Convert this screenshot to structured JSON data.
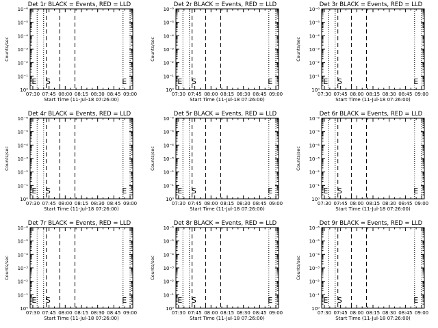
{
  "chart_data": [
    {
      "type": "line",
      "title": "Det 1r BLACK = Events, RED = LLD",
      "xlabel": "Start Time (11-Jul-18 07:26:00)",
      "ylabel": "Counts/sec",
      "x_tick_labels": [
        "07:30",
        "07:45",
        "08:00",
        "08:15",
        "08:30",
        "08:45",
        "09:00"
      ],
      "y_tick_labels": [
        "10⁰",
        "10⁻¹",
        "10⁻²",
        "10⁻³",
        "10⁻⁴",
        "10⁻⁵",
        "10⁻⁶"
      ],
      "series": [],
      "markers": [
        "E",
        "S",
        "E"
      ]
    },
    {
      "type": "line",
      "title": "Det 2r BLACK = Events, RED = LLD",
      "xlabel": "Start Time (11-Jul-18 07:26:00)",
      "ylabel": "Counts/sec",
      "x_tick_labels": [
        "07:30",
        "07:45",
        "08:00",
        "08:15",
        "08:30",
        "08:45",
        "09:00"
      ],
      "y_tick_labels": [
        "10⁰",
        "10⁻¹",
        "10⁻²",
        "10⁻³",
        "10⁻⁴",
        "10⁻⁵",
        "10⁻⁶"
      ],
      "series": [],
      "markers": [
        "E",
        "S",
        "E"
      ]
    },
    {
      "type": "line",
      "title": "Det 3r BLACK = Events, RED = LLD",
      "xlabel": "Start Time (11-Jul-18 07:26:00)",
      "ylabel": "Counts/sec",
      "x_tick_labels": [
        "07:30",
        "07:45",
        "08:00",
        "08:15",
        "08:30",
        "08:45",
        "09:00"
      ],
      "y_tick_labels": [
        "10⁰",
        "10⁻¹",
        "10⁻²",
        "10⁻³",
        "10⁻⁴",
        "10⁻⁵",
        "10⁻⁶"
      ],
      "series": [],
      "markers": [
        "E",
        "S",
        "E"
      ]
    },
    {
      "type": "line",
      "title": "Det 4r BLACK = Events, RED = LLD",
      "xlabel": "Start Time (11-Jul-18 07:26:00)",
      "ylabel": "Counts/sec",
      "x_tick_labels": [
        "07:30",
        "07:45",
        "08:00",
        "08:15",
        "08:30",
        "08:45",
        "09:00"
      ],
      "y_tick_labels": [
        "10⁰",
        "10⁻¹",
        "10⁻²",
        "10⁻³",
        "10⁻⁴",
        "10⁻⁵",
        "10⁻⁶"
      ],
      "series": [],
      "markers": [
        "E",
        "S",
        "E"
      ]
    },
    {
      "type": "line",
      "title": "Det 5r BLACK = Events, RED = LLD",
      "xlabel": "Start Time (11-Jul-18 07:26:00)",
      "ylabel": "Counts/sec",
      "x_tick_labels": [
        "07:30",
        "07:45",
        "08:00",
        "08:15",
        "08:30",
        "08:45",
        "09:00"
      ],
      "y_tick_labels": [
        "10⁰",
        "10⁻¹",
        "10⁻²",
        "10⁻³",
        "10⁻⁴",
        "10⁻⁵",
        "10⁻⁶"
      ],
      "series": [],
      "markers": [
        "E",
        "S",
        "E"
      ]
    },
    {
      "type": "line",
      "title": "Det 6r BLACK = Events, RED = LLD",
      "xlabel": "Start Time (11-Jul-18 07:26:00)",
      "ylabel": "Counts/sec",
      "x_tick_labels": [
        "07:30",
        "07:45",
        "08:00",
        "08:15",
        "08:30",
        "08:45",
        "09:00"
      ],
      "y_tick_labels": [
        "10⁰",
        "10⁻¹",
        "10⁻²",
        "10⁻³",
        "10⁻⁴",
        "10⁻⁵",
        "10⁻⁶"
      ],
      "series": [],
      "markers": [
        "E",
        "S",
        "E"
      ]
    },
    {
      "type": "line",
      "title": "Det 7r BLACK = Events, RED = LLD",
      "xlabel": "Start Time (11-Jul-18 07:26:00)",
      "ylabel": "Counts/sec",
      "x_tick_labels": [
        "07:30",
        "07:45",
        "08:00",
        "08:15",
        "08:30",
        "08:45",
        "09:00"
      ],
      "y_tick_labels": [
        "10⁰",
        "10⁻¹",
        "10⁻²",
        "10⁻³",
        "10⁻⁴",
        "10⁻⁵",
        "10⁻⁶"
      ],
      "series": [],
      "markers": [
        "E",
        "S",
        "E"
      ]
    },
    {
      "type": "line",
      "title": "Det 8r BLACK = Events, RED = LLD",
      "xlabel": "Start Time (11-Jul-18 07:26:00)",
      "ylabel": "Counts/sec",
      "x_tick_labels": [
        "07:30",
        "07:45",
        "08:00",
        "08:15",
        "08:30",
        "08:45",
        "09:00"
      ],
      "y_tick_labels": [
        "10⁰",
        "10⁻¹",
        "10⁻²",
        "10⁻³",
        "10⁻⁴",
        "10⁻⁵",
        "10⁻⁶"
      ],
      "series": [],
      "markers": [
        "E",
        "S",
        "E"
      ]
    },
    {
      "type": "line",
      "title": "Det 9r BLACK = Events, RED = LLD",
      "xlabel": "Start Time (11-Jul-18 07:26:00)",
      "ylabel": "Counts/sec",
      "x_tick_labels": [
        "07:30",
        "07:45",
        "08:00",
        "08:15",
        "08:30",
        "08:45",
        "09:00"
      ],
      "y_tick_labels": [
        "10⁰",
        "10⁻¹",
        "10⁻²",
        "10⁻³",
        "10⁻⁴",
        "10⁻⁵",
        "10⁻⁶"
      ],
      "series": [],
      "markers": [
        "E",
        "S",
        "E"
      ]
    }
  ]
}
